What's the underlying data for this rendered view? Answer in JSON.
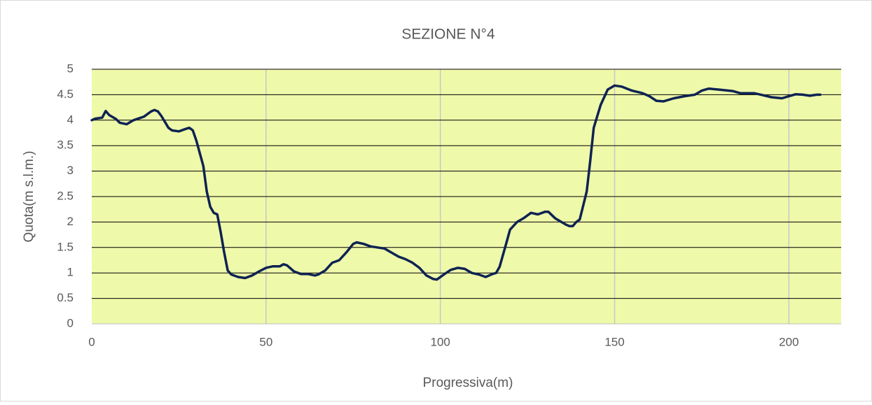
{
  "chart_data": {
    "type": "line",
    "title": "SEZIONE N°4",
    "x_label": "Progressiva(m)",
    "y_label": "Quota(m s.l.m.)",
    "xlim": [
      0,
      215
    ],
    "xticks": [
      0,
      50,
      100,
      150,
      200
    ],
    "ylim": [
      0,
      5
    ],
    "yticks": [
      0,
      0.5,
      1,
      1.5,
      2,
      2.5,
      3,
      3.5,
      4,
      4.5,
      5
    ],
    "grid": true,
    "plot_background": "#eff9aa",
    "series": [
      {
        "name": "SEZIONE N°4",
        "color": "#0e2352",
        "x": [
          0,
          1,
          3,
          4,
          5,
          7,
          8,
          10,
          12,
          15,
          17,
          18,
          19,
          20,
          22,
          23,
          25,
          27,
          28,
          29,
          30,
          32,
          33,
          34,
          35,
          36,
          37,
          38,
          39,
          40,
          42,
          44,
          46,
          48,
          50,
          52,
          54,
          55,
          56,
          58,
          60,
          62,
          64,
          65,
          67,
          69,
          71,
          73,
          75,
          76,
          78,
          80,
          82,
          84,
          86,
          88,
          90,
          92,
          94,
          96,
          98,
          99,
          101,
          103,
          105,
          107,
          109,
          111,
          113,
          115,
          116,
          117,
          119,
          120,
          122,
          124,
          126,
          128,
          130,
          131,
          133,
          136,
          137,
          138,
          139,
          140,
          142,
          143,
          144,
          146,
          148,
          150,
          152,
          155,
          158,
          160,
          162,
          164,
          167,
          170,
          173,
          175,
          177,
          180,
          184,
          186,
          190,
          192,
          195,
          198,
          200,
          202,
          204,
          206,
          208,
          209
        ],
        "values": [
          4.0,
          4.03,
          4.05,
          4.18,
          4.1,
          4.02,
          3.95,
          3.92,
          4.0,
          4.07,
          4.17,
          4.2,
          4.17,
          4.08,
          3.85,
          3.8,
          3.78,
          3.83,
          3.85,
          3.8,
          3.6,
          3.1,
          2.6,
          2.3,
          2.18,
          2.15,
          1.8,
          1.4,
          1.05,
          0.97,
          0.92,
          0.9,
          0.95,
          1.03,
          1.1,
          1.13,
          1.13,
          1.17,
          1.15,
          1.03,
          0.98,
          0.98,
          0.95,
          0.97,
          1.05,
          1.2,
          1.25,
          1.4,
          1.57,
          1.6,
          1.57,
          1.52,
          1.5,
          1.48,
          1.4,
          1.32,
          1.27,
          1.2,
          1.1,
          0.95,
          0.88,
          0.87,
          0.97,
          1.06,
          1.1,
          1.08,
          1.0,
          0.97,
          0.92,
          0.98,
          1.0,
          1.12,
          1.6,
          1.85,
          2.0,
          2.08,
          2.18,
          2.15,
          2.2,
          2.2,
          2.07,
          1.95,
          1.92,
          1.92,
          2.0,
          2.05,
          2.6,
          3.2,
          3.85,
          4.3,
          4.6,
          4.68,
          4.66,
          4.58,
          4.53,
          4.47,
          4.38,
          4.37,
          4.43,
          4.47,
          4.5,
          4.58,
          4.62,
          4.6,
          4.57,
          4.53,
          4.53,
          4.5,
          4.45,
          4.43,
          4.47,
          4.51,
          4.5,
          4.48,
          4.5,
          4.5
        ]
      }
    ]
  }
}
